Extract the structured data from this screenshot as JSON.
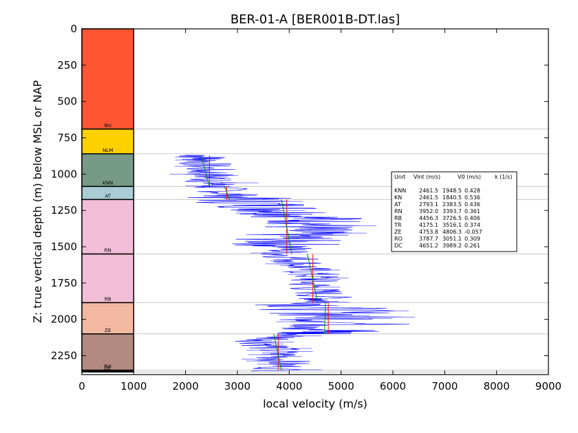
{
  "chart_data": {
    "type": "line",
    "title": "BER-01-A [BER001B-DT.las]",
    "xlabel": "local velocity (m/s)",
    "ylabel": "Z: true vertical depth (m) below MSL or NAP",
    "xlim": [
      0,
      9000
    ],
    "ylim": [
      2380,
      0
    ],
    "xticks": [
      0,
      1000,
      2000,
      3000,
      4000,
      5000,
      6000,
      7000,
      8000,
      9000
    ],
    "yticks": [
      0,
      250,
      500,
      750,
      1000,
      1250,
      1500,
      1750,
      2000,
      2250
    ],
    "grid": false,
    "units": [
      {
        "name": "NU",
        "top": 0,
        "base": 690,
        "color": "#ff5533"
      },
      {
        "name": "NLM",
        "top": 690,
        "base": 860,
        "color": "#ffd000"
      },
      {
        "name": "KNN",
        "top": 860,
        "base": 1085,
        "color": "#779988"
      },
      {
        "name": "AT",
        "top": 1085,
        "base": 1175,
        "color": "#aaccd5"
      },
      {
        "name": "RN",
        "top": 1175,
        "base": 1550,
        "color": "#f2bdd7"
      },
      {
        "name": "RB",
        "top": 1550,
        "base": 1885,
        "color": "#f2bdd7"
      },
      {
        "name": "ZE",
        "top": 1885,
        "base": 2100,
        "color": "#f2b8a2"
      },
      {
        "name": "RO",
        "top": 2100,
        "base": 2350,
        "color": "#b38a7f"
      },
      {
        "name": "DC",
        "top": 2350,
        "base": 2362,
        "color": "#222222"
      }
    ],
    "legend": {
      "position": "right",
      "header": [
        "Unit",
        "Vint (m/s)",
        "V0 (m/s)",
        "k (1/s)"
      ],
      "rows": [
        [
          "KNN",
          "2461.5",
          "1948.5",
          "0.428"
        ],
        [
          "KN",
          "2461.5",
          "1840.5",
          "0.536"
        ],
        [
          "AT",
          "2793.1",
          "2383.5",
          "0.436"
        ],
        [
          "RN",
          "3952.0",
          "3393.7",
          "0.361"
        ],
        [
          "RB",
          "4456.3",
          "3726.5",
          "0.406"
        ],
        [
          "TR",
          "4175.1",
          "3516.1",
          "0.374"
        ],
        [
          "ZE",
          "4753.8",
          "4806.3",
          "-0.057"
        ],
        [
          "RO",
          "3787.7",
          "3051.1",
          "0.309"
        ],
        [
          "DC",
          "4651.2",
          "3989.2",
          "0.261"
        ]
      ]
    },
    "series": [
      {
        "color": "#0000ff",
        "depth": [
          870,
          900,
          950,
          1000,
          1050,
          1085,
          1130,
          1175,
          1220,
          1260,
          1300,
          1340,
          1380,
          1420,
          1460,
          1500,
          1550,
          1600,
          1650,
          1700,
          1750,
          1800,
          1850,
          1885,
          1930,
          1980,
          2030,
          2080,
          2100,
          2150,
          2200,
          2250,
          2300,
          2360
        ],
        "velocity": [
          2300,
          2400,
          2350,
          2450,
          2500,
          2600,
          2800,
          3000,
          3600,
          4000,
          4400,
          4600,
          4200,
          4100,
          3900,
          4000,
          3900,
          4200,
          4300,
          4500,
          4400,
          4500,
          4700,
          4600,
          4700,
          5000,
          5200,
          4800,
          4200,
          3500,
          3700,
          3800,
          3900,
          3800
        ]
      },
      {
        "color": "#ff0000",
        "segments": [
          [
            [
              2461.5,
              870
            ],
            [
              2461.5,
              1085
            ]
          ],
          [
            [
              2793.1,
              1085
            ],
            [
              2793.1,
              1175
            ]
          ],
          [
            [
              3952.0,
              1175
            ],
            [
              3952.0,
              1550
            ]
          ],
          [
            [
              4456.3,
              1550
            ],
            [
              4456.3,
              1885
            ]
          ],
          [
            [
              4753.8,
              1885
            ],
            [
              4753.8,
              2100
            ]
          ],
          [
            [
              3787.7,
              2100
            ],
            [
              3787.7,
              2350
            ]
          ]
        ]
      },
      {
        "color": "#008800",
        "segments": [
          [
            [
              2300,
              870
            ],
            [
              2460,
              1085
            ]
          ],
          [
            [
              2750,
              1085
            ],
            [
              2850,
              1175
            ]
          ],
          [
            [
              3850,
              1175
            ],
            [
              4050,
              1550
            ]
          ],
          [
            [
              4350,
              1550
            ],
            [
              4550,
              1885
            ]
          ],
          [
            [
              4700,
              1885
            ],
            [
              4680,
              2100
            ]
          ],
          [
            [
              3700,
              2100
            ],
            [
              3850,
              2350
            ]
          ]
        ]
      }
    ]
  }
}
